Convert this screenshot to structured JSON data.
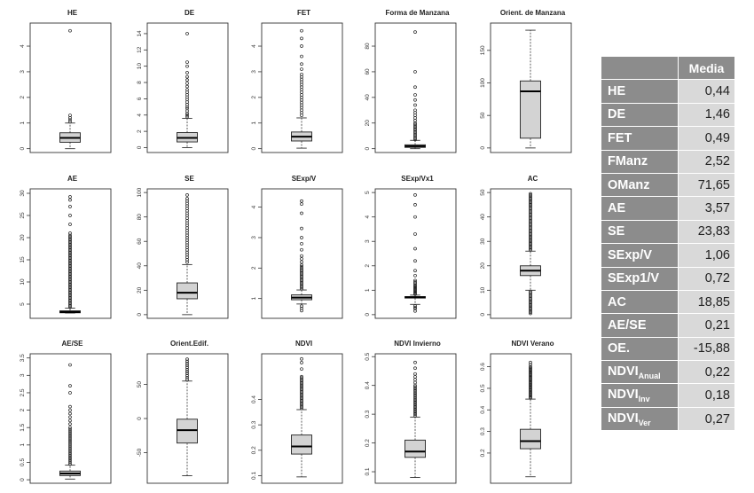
{
  "chart_data": [
    {
      "type": "box",
      "title": "HE",
      "yticks": [
        0,
        1,
        2,
        3,
        4
      ],
      "ylim": [
        -0.15,
        4.9
      ],
      "whisker_low": 0.0,
      "q1": 0.25,
      "median": 0.42,
      "q3": 0.62,
      "whisker_high": 1.0,
      "outliers": [
        1.05,
        1.12,
        1.2,
        1.3,
        4.6
      ]
    },
    {
      "type": "box",
      "title": "DE",
      "yticks": [
        0,
        2,
        4,
        6,
        8,
        10,
        12,
        14
      ],
      "ylim": [
        -0.6,
        15.3
      ],
      "whisker_low": 0.0,
      "q1": 0.7,
      "median": 1.2,
      "q3": 1.85,
      "whisker_high": 3.6,
      "outliers": [
        3.8,
        4.0,
        4.2,
        4.5,
        4.8,
        5.0,
        5.3,
        5.6,
        5.9,
        6.2,
        6.5,
        6.8,
        7.1,
        7.5,
        7.9,
        8.3,
        8.7,
        9.2,
        10.0,
        10.5,
        14.0
      ]
    },
    {
      "type": "box",
      "title": "FET",
      "yticks": [
        0,
        1,
        2,
        3,
        4
      ],
      "ylim": [
        -0.15,
        4.9
      ],
      "whisker_low": 0.02,
      "q1": 0.3,
      "median": 0.47,
      "q3": 0.65,
      "whisker_high": 1.2,
      "outliers": [
        1.3,
        1.4,
        1.5,
        1.6,
        1.7,
        1.8,
        1.9,
        2.0,
        2.1,
        2.2,
        2.3,
        2.4,
        2.5,
        2.6,
        2.7,
        2.8,
        2.9,
        3.1,
        3.3,
        3.6,
        4.0,
        4.3,
        4.6
      ]
    },
    {
      "type": "box",
      "title": "Forma de Manzana",
      "yticks": [
        0,
        20,
        40,
        60,
        80
      ],
      "ylim": [
        -3,
        98
      ],
      "whisker_low": 0.0,
      "q1": 1.0,
      "median": 1.9,
      "q3": 3.0,
      "whisker_high": 6.5,
      "outliers": [
        7,
        8,
        9,
        10,
        11,
        12,
        13,
        14,
        15,
        16,
        17,
        18,
        19,
        20,
        22,
        24,
        26,
        28,
        30,
        34,
        38,
        42,
        48,
        60,
        91
      ]
    },
    {
      "type": "box",
      "title": "Orient. de Manzana",
      "yticks": [
        0,
        50,
        100,
        150
      ],
      "ylim": [
        -7,
        192
      ],
      "whisker_low": 0.0,
      "q1": 15,
      "median": 87,
      "q3": 103,
      "whisker_high": 181,
      "outliers": []
    },
    {
      "type": "box",
      "title": "AE",
      "yticks": [
        5,
        10,
        15,
        20,
        25,
        30
      ],
      "ylim": [
        1.8,
        31
      ],
      "whisker_low": 3.0,
      "q1": 3.05,
      "median": 3.2,
      "q3": 3.5,
      "whisker_high": 4.1,
      "outliers": [
        4.3,
        4.6,
        4.9,
        5.2,
        5.5,
        5.8,
        6.1,
        6.4,
        6.7,
        7,
        7.3,
        7.6,
        7.9,
        8.2,
        8.5,
        8.8,
        9.1,
        9.4,
        9.7,
        10,
        10.3,
        10.6,
        10.9,
        11.2,
        11.5,
        11.8,
        12.1,
        12.4,
        12.7,
        13,
        13.3,
        13.6,
        13.9,
        14.2,
        14.5,
        14.8,
        15.1,
        15.4,
        15.7,
        16,
        16.3,
        16.6,
        16.9,
        17.2,
        17.5,
        17.8,
        18.1,
        18.4,
        18.7,
        19,
        19.3,
        19.6,
        19.9,
        20.2,
        20.5,
        21,
        23,
        25,
        27,
        28.5,
        29.2
      ]
    },
    {
      "type": "box",
      "title": "SE",
      "yticks": [
        0,
        20,
        40,
        60,
        80,
        100
      ],
      "ylim": [
        -3,
        103
      ],
      "whisker_low": 0.0,
      "q1": 13,
      "median": 18,
      "q3": 26,
      "whisker_high": 41,
      "outliers": [
        43,
        45,
        47,
        49,
        51,
        53,
        55,
        57,
        59,
        61,
        63,
        65,
        67,
        69,
        71,
        73,
        75,
        77,
        79,
        81,
        83,
        85,
        87,
        89,
        91,
        93,
        95,
        98
      ]
    },
    {
      "type": "box",
      "title": "SExp/V",
      "yticks": [
        1,
        2,
        3,
        4
      ],
      "ylim": [
        0.35,
        4.6
      ],
      "whisker_low": 0.82,
      "q1": 0.96,
      "median": 1.03,
      "q3": 1.12,
      "whisker_high": 1.28,
      "outliers": [
        0.6,
        0.68,
        0.75,
        1.32,
        1.36,
        1.4,
        1.44,
        1.48,
        1.52,
        1.56,
        1.6,
        1.64,
        1.68,
        1.72,
        1.76,
        1.8,
        1.84,
        1.88,
        1.92,
        1.96,
        2.0,
        2.05,
        2.1,
        2.2,
        2.3,
        2.4,
        2.6,
        2.8,
        3.0,
        3.3,
        3.8,
        4.1,
        4.2
      ]
    },
    {
      "type": "box",
      "title": "SExp/Vx1",
      "yticks": [
        0,
        1,
        2,
        3,
        4,
        5
      ],
      "ylim": [
        -0.15,
        5.15
      ],
      "whisker_low": 0.42,
      "q1": 0.68,
      "median": 0.71,
      "q3": 0.74,
      "whisker_high": 0.8,
      "outliers": [
        0.15,
        0.25,
        0.3,
        0.36,
        0.84,
        0.88,
        0.92,
        0.96,
        1.0,
        1.04,
        1.08,
        1.12,
        1.16,
        1.2,
        1.25,
        1.3,
        1.35,
        1.4,
        1.6,
        1.8,
        2.2,
        2.7,
        3.3,
        4.0,
        4.5,
        4.9
      ]
    },
    {
      "type": "box",
      "title": "AC",
      "yticks": [
        0,
        10,
        20,
        30,
        40,
        50
      ],
      "ylim": [
        -1.5,
        51.5
      ],
      "whisker_low": 10,
      "q1": 16,
      "median": 18,
      "q3": 20,
      "whisker_high": 26,
      "outliers": [
        0.5,
        1,
        1.5,
        2,
        2.5,
        3,
        3.5,
        4,
        4.5,
        5,
        5.5,
        6,
        6.5,
        7,
        7.5,
        8,
        8.5,
        9,
        9.5,
        26.5,
        27,
        27.5,
        28,
        28.5,
        29,
        29.5,
        30,
        30.5,
        31,
        31.5,
        32,
        32.5,
        33,
        33.5,
        34,
        34.5,
        35,
        35.5,
        36,
        36.5,
        37,
        37.5,
        38,
        38.5,
        39,
        39.5,
        40,
        40.5,
        41,
        41.5,
        42,
        42.5,
        43,
        43.5,
        44,
        44.5,
        45,
        45.5,
        46,
        46.5,
        47,
        47.5,
        48,
        48.5,
        49,
        49.5
      ]
    },
    {
      "type": "box",
      "title": "AE/SE",
      "yticks": [
        0.0,
        0.5,
        1.0,
        1.5,
        2.0,
        2.5,
        3.0,
        3.5
      ],
      "ylim": [
        -0.1,
        3.62
      ],
      "whisker_low": 0.02,
      "q1": 0.12,
      "median": 0.18,
      "q3": 0.25,
      "whisker_high": 0.42,
      "outliers": [
        0.45,
        0.5,
        0.55,
        0.6,
        0.65,
        0.7,
        0.75,
        0.8,
        0.85,
        0.9,
        0.95,
        1.0,
        1.05,
        1.1,
        1.15,
        1.2,
        1.25,
        1.3,
        1.35,
        1.4,
        1.45,
        1.5,
        1.6,
        1.7,
        1.8,
        1.9,
        2.0,
        2.1,
        2.5,
        2.7,
        3.3
      ]
    },
    {
      "type": "box",
      "title": "Orient.Edif.",
      "yticks": [
        -50,
        0,
        50
      ],
      "ylim": [
        -95,
        95
      ],
      "whisker_low": -84,
      "q1": -36,
      "median": -17,
      "q3": -1,
      "whisker_high": 55,
      "outliers": [
        57,
        60,
        63,
        66,
        69,
        72,
        75,
        78,
        81,
        84,
        87
      ]
    },
    {
      "type": "box",
      "title": "NDVI",
      "yticks": [
        0.1,
        0.2,
        0.3,
        0.4
      ],
      "ylim": [
        0.07,
        0.58
      ],
      "whisker_low": 0.095,
      "q1": 0.185,
      "median": 0.215,
      "q3": 0.26,
      "whisker_high": 0.36,
      "outliers": [
        0.365,
        0.37,
        0.375,
        0.38,
        0.385,
        0.39,
        0.395,
        0.4,
        0.405,
        0.41,
        0.415,
        0.42,
        0.425,
        0.43,
        0.435,
        0.44,
        0.445,
        0.45,
        0.455,
        0.46,
        0.465,
        0.47,
        0.475,
        0.48,
        0.485,
        0.49,
        0.52,
        0.545,
        0.56
      ]
    },
    {
      "type": "box",
      "title": "NDVI Invierno",
      "yticks": [
        0.1,
        0.2,
        0.3,
        0.4,
        0.5
      ],
      "ylim": [
        0.06,
        0.51
      ],
      "whisker_low": 0.08,
      "q1": 0.15,
      "median": 0.17,
      "q3": 0.21,
      "whisker_high": 0.29,
      "outliers": [
        0.295,
        0.3,
        0.305,
        0.31,
        0.315,
        0.32,
        0.325,
        0.33,
        0.335,
        0.34,
        0.345,
        0.35,
        0.355,
        0.36,
        0.365,
        0.37,
        0.375,
        0.38,
        0.385,
        0.39,
        0.395,
        0.4,
        0.41,
        0.42,
        0.43,
        0.44,
        0.46,
        0.48
      ]
    },
    {
      "type": "box",
      "title": "NDVI Verano",
      "yticks": [
        0.2,
        0.3,
        0.4,
        0.5,
        0.6
      ],
      "ylim": [
        0.06,
        0.66
      ],
      "whisker_low": 0.09,
      "q1": 0.22,
      "median": 0.255,
      "q3": 0.31,
      "whisker_high": 0.45,
      "outliers": [
        0.455,
        0.46,
        0.465,
        0.47,
        0.475,
        0.48,
        0.485,
        0.49,
        0.495,
        0.5,
        0.505,
        0.51,
        0.515,
        0.52,
        0.525,
        0.53,
        0.535,
        0.54,
        0.545,
        0.55,
        0.555,
        0.56,
        0.565,
        0.57,
        0.575,
        0.58,
        0.585,
        0.59,
        0.595,
        0.6,
        0.61,
        0.62
      ]
    }
  ],
  "stats_table": {
    "header": "Media",
    "rows": [
      {
        "name": "HE",
        "value": "0,44"
      },
      {
        "name": "DE",
        "value": "1,46"
      },
      {
        "name": "FET",
        "value": "0,49"
      },
      {
        "name": "FManz",
        "value": "2,52"
      },
      {
        "name": "OManz",
        "value": "71,65"
      },
      {
        "name": "AE",
        "value": "3,57"
      },
      {
        "name": "SE",
        "value": "23,83"
      },
      {
        "name": "SExp/V",
        "value": "1,06"
      },
      {
        "name": "SExp1/V",
        "value": "0,72"
      },
      {
        "name": "AC",
        "value": "18,85"
      },
      {
        "name": "AE/SE",
        "value": "0,21"
      },
      {
        "name": "OE.",
        "value": "-15,88"
      },
      {
        "name": "NDVI",
        "sub": "Anual",
        "value": "0,22"
      },
      {
        "name": "NDVI",
        "sub": "Inv",
        "value": "0,18"
      },
      {
        "name": "NDVI",
        "sub": "Ver",
        "value": "0,27"
      }
    ]
  }
}
